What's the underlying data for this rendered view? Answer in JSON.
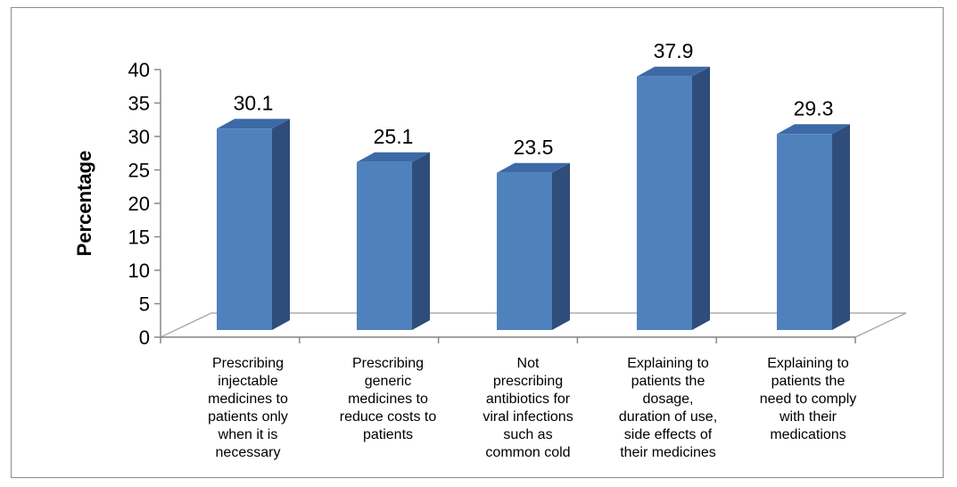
{
  "chart_data": {
    "type": "bar",
    "categories": [
      "Prescribing injectable medicines to patients only when it is necessary",
      "Prescribing generic medicines to reduce costs to patients",
      "Not prescribing antibiotics for viral infections such as common cold",
      "Explaining to patients the dosage, duration of use, side effects of their medicines",
      "Explaining to patients the need to comply with their medications"
    ],
    "category_lines": [
      [
        "Prescribing",
        "injectable",
        "medicines to",
        "patients only",
        "when it is",
        "necessary"
      ],
      [
        "Prescribing",
        "generic",
        "medicines to",
        "reduce costs to",
        "patients"
      ],
      [
        "Not",
        "prescribing",
        "antibiotics for",
        "viral infections",
        "such as",
        "common cold"
      ],
      [
        "Explaining to",
        "patients the",
        "dosage,",
        "duration of use,",
        "side effects of",
        "their medicines"
      ],
      [
        "Explaining to",
        "patients the",
        "need to comply",
        "with their",
        "medications"
      ]
    ],
    "values": [
      30.1,
      25.1,
      23.5,
      37.9,
      29.3
    ],
    "value_labels": [
      "30.1",
      "25.1",
      "23.5",
      "37.9",
      "29.3"
    ],
    "ylabel": "Percentage",
    "xlabel": "",
    "ylim": [
      0,
      40
    ],
    "yticks": [
      0,
      5,
      10,
      15,
      20,
      25,
      30,
      35,
      40
    ],
    "grid": false,
    "style": "3d-column",
    "colors": {
      "bar_front": "#4f81bd",
      "bar_side": "#2e4d7a",
      "bar_top": "#3d6aa6"
    }
  }
}
